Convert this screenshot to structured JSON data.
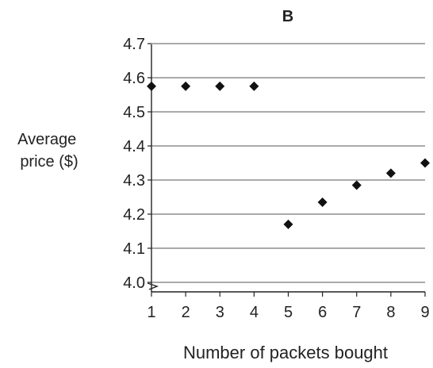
{
  "chart_data": {
    "type": "scatter",
    "title": "B",
    "xlabel": "Number of packets bought",
    "ylabel_lines": [
      "Average",
      "price ($)"
    ],
    "x": [
      1,
      2,
      3,
      4,
      5,
      6,
      7,
      8,
      9
    ],
    "y": [
      4.575,
      4.575,
      4.575,
      4.575,
      4.17,
      4.235,
      4.285,
      4.32,
      4.35
    ],
    "xlim": [
      1,
      9
    ],
    "ylim": [
      4.0,
      4.7
    ],
    "x_ticks": [
      "1",
      "2",
      "3",
      "4",
      "5",
      "6",
      "7",
      "8",
      "9"
    ],
    "y_ticks": [
      "4.0",
      "4.1",
      "4.2",
      "4.3",
      "4.4",
      "4.5",
      "4.6",
      "4.7"
    ],
    "grid": "horizontal",
    "axis_break": "y",
    "marker": "diamond",
    "marker_color": "#111111"
  }
}
